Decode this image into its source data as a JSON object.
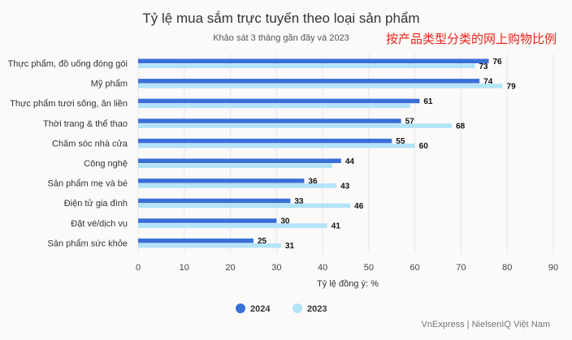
{
  "chart_data": {
    "type": "bar",
    "orientation": "horizontal",
    "title": "Tỷ lệ mua sắm trực tuyến theo loại sản phẩm",
    "subtitle": "Khảo sát 3 tháng gần đây và 2023",
    "annotation": "按产品类型分类的网上购物比例",
    "categories": [
      "Thực phẩm, đồ uống đóng gói",
      "Mỹ phẩm",
      "Thực phẩm tươi sống, ăn liền",
      "Thời trang & thể thao",
      "Chăm sóc nhà cửa",
      "Công nghệ",
      "Sản phẩm mẹ và bé",
      "Điện tử gia đình",
      "Đặt vé/dịch vụ",
      "Sản phẩm sức khỏe"
    ],
    "series": [
      {
        "name": "2024",
        "color": "#3a6fd8",
        "values": [
          76,
          74,
          61,
          57,
          55,
          44,
          36,
          33,
          30,
          25
        ]
      },
      {
        "name": "2023",
        "color": "#b3e3f8",
        "values": [
          73,
          79,
          59,
          68,
          60,
          42,
          43,
          46,
          41,
          31
        ],
        "labels": [
          73,
          79,
          null,
          68,
          60,
          null,
          43,
          46,
          41,
          31
        ]
      }
    ],
    "xlabel": "Tỷ lệ đồng ý: %",
    "xlim": [
      0,
      90
    ],
    "xticks": [
      0,
      10,
      20,
      30,
      40,
      50,
      60,
      70,
      80,
      90
    ],
    "grid": true,
    "legend_position": "bottom",
    "source": "VnExpress | NielsenIQ Việt Nam"
  }
}
